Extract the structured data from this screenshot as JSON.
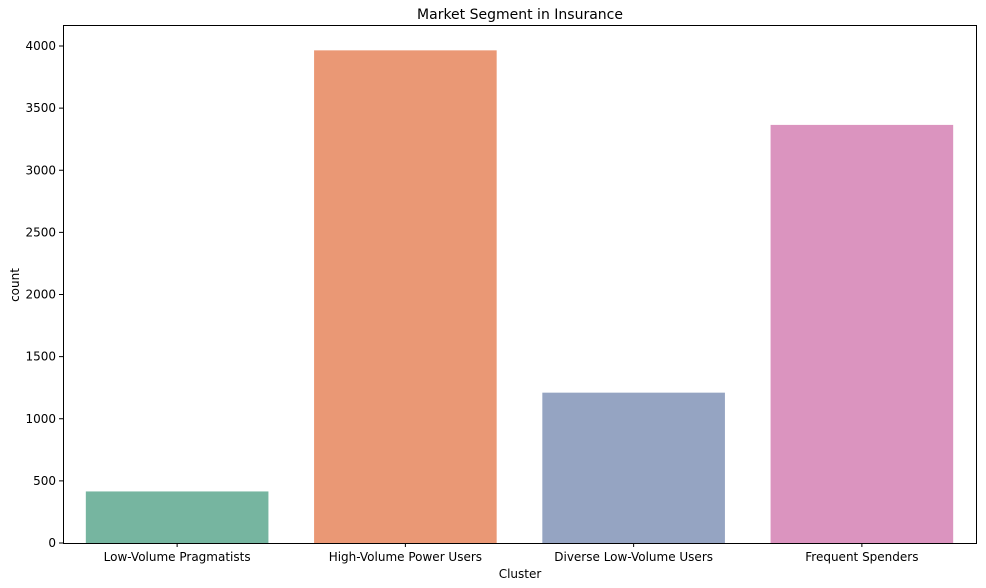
{
  "chart_data": {
    "type": "bar",
    "title": "Market Segment in Insurance",
    "xlabel": "Cluster",
    "ylabel": "count",
    "categories": [
      "Low-Volume Pragmatists",
      "High-Volume Power Users",
      "Diverse Low-Volume Users",
      "Frequent Spenders"
    ],
    "values": [
      415,
      3965,
      1210,
      3365
    ],
    "colors": [
      "#76b5a0",
      "#ea9875",
      "#95a4c2",
      "#db94bf"
    ],
    "ylim": [
      0,
      4200
    ],
    "yticks": [
      0,
      500,
      1000,
      1500,
      2000,
      2500,
      3000,
      3500,
      4000
    ],
    "grid": false,
    "legend": "none"
  }
}
